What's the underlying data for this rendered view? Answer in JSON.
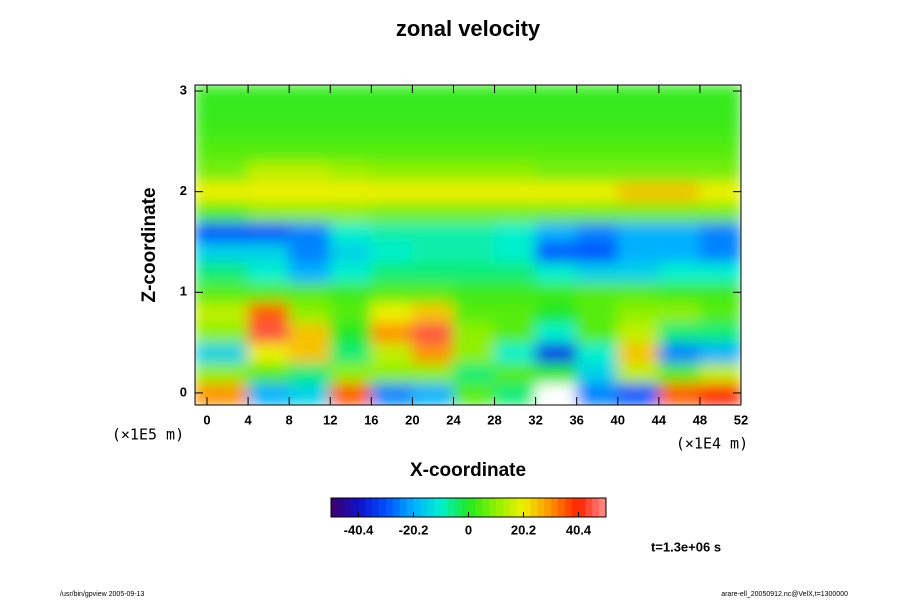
{
  "chart_data": {
    "type": "heatmap",
    "title": "zonal velocity",
    "x_label": "X-coordinate",
    "y_label": "Z-coordinate",
    "x_unit": "(×1E4 m)",
    "y_unit": "(×1E5 m)",
    "annotation": "t=1.3e+06 s",
    "footer_left": "/usr/bin/gpview 2005-09-13",
    "footer_right": "arare-ell_20050912.nc@VelX,t=1300000",
    "xlim": [
      -1.17,
      52
    ],
    "ylim": [
      -0.12,
      3.06
    ],
    "xticks": [
      0,
      4,
      8,
      12,
      16,
      20,
      24,
      28,
      32,
      36,
      40,
      44,
      48,
      52
    ],
    "yticks": [
      0,
      1,
      2,
      3
    ],
    "x": [
      2,
      6,
      10,
      14,
      18,
      22,
      26,
      30,
      34,
      38,
      42,
      46,
      50
    ],
    "y": [
      0,
      0.2,
      0.4,
      0.6,
      0.8,
      1.0,
      1.2,
      1.4,
      1.6,
      1.8,
      2.0,
      2.2,
      2.4,
      2.6,
      2.8,
      3.0
    ],
    "z": [
      [
        30,
        -20,
        -15,
        35,
        -25,
        -20,
        5,
        -5,
        55,
        -25,
        -30,
        35,
        40
      ],
      [
        10,
        5,
        -5,
        10,
        10,
        10,
        -5,
        5,
        0,
        -15,
        15,
        5,
        15
      ],
      [
        -15,
        20,
        25,
        -5,
        15,
        30,
        10,
        -10,
        -35,
        -10,
        25,
        -25,
        -20
      ],
      [
        10,
        45,
        25,
        0,
        30,
        45,
        10,
        5,
        -10,
        5,
        15,
        -5,
        -5
      ],
      [
        15,
        35,
        10,
        5,
        20,
        25,
        5,
        5,
        0,
        5,
        10,
        10,
        5
      ],
      [
        5,
        5,
        5,
        3,
        5,
        5,
        3,
        3,
        3,
        5,
        5,
        3,
        3
      ],
      [
        -5,
        -10,
        -20,
        -10,
        -5,
        -5,
        -5,
        -5,
        -10,
        -15,
        -15,
        -10,
        -10
      ],
      [
        -15,
        -15,
        -25,
        -15,
        -10,
        -8,
        -8,
        -10,
        -30,
        -30,
        -20,
        -20,
        -25
      ],
      [
        -30,
        -30,
        -25,
        -10,
        -8,
        -8,
        -8,
        -10,
        -20,
        -25,
        -20,
        -20,
        -25
      ],
      [
        5,
        10,
        10,
        10,
        8,
        8,
        8,
        8,
        8,
        8,
        8,
        8,
        8
      ],
      [
        20,
        20,
        20,
        20,
        20,
        20,
        20,
        20,
        20,
        20,
        25,
        25,
        20
      ],
      [
        8,
        15,
        15,
        12,
        10,
        10,
        10,
        10,
        8,
        8,
        8,
        8,
        8
      ],
      [
        5,
        5,
        5,
        5,
        5,
        5,
        5,
        5,
        5,
        5,
        5,
        5,
        5
      ],
      [
        3,
        3,
        3,
        3,
        3,
        3,
        3,
        3,
        3,
        3,
        3,
        3,
        3
      ],
      [
        2,
        2,
        2,
        2,
        2,
        2,
        2,
        2,
        2,
        2,
        2,
        2,
        2
      ],
      [
        2,
        2,
        2,
        2,
        2,
        2,
        2,
        2,
        2,
        2,
        2,
        2,
        2
      ]
    ],
    "clim": [
      -50.5,
      50.5
    ],
    "colorbar_ticks": [
      -40.4,
      -20.2,
      0,
      20.2,
      40.4
    ],
    "colors": [
      "#40006a",
      "#1010c8",
      "#0050ff",
      "#00b0ff",
      "#00f0d0",
      "#20e820",
      "#90f000",
      "#f0f000",
      "#ff9000",
      "#ff2000",
      "#ff9090"
    ],
    "out_of_range_color": "#ffffff"
  }
}
